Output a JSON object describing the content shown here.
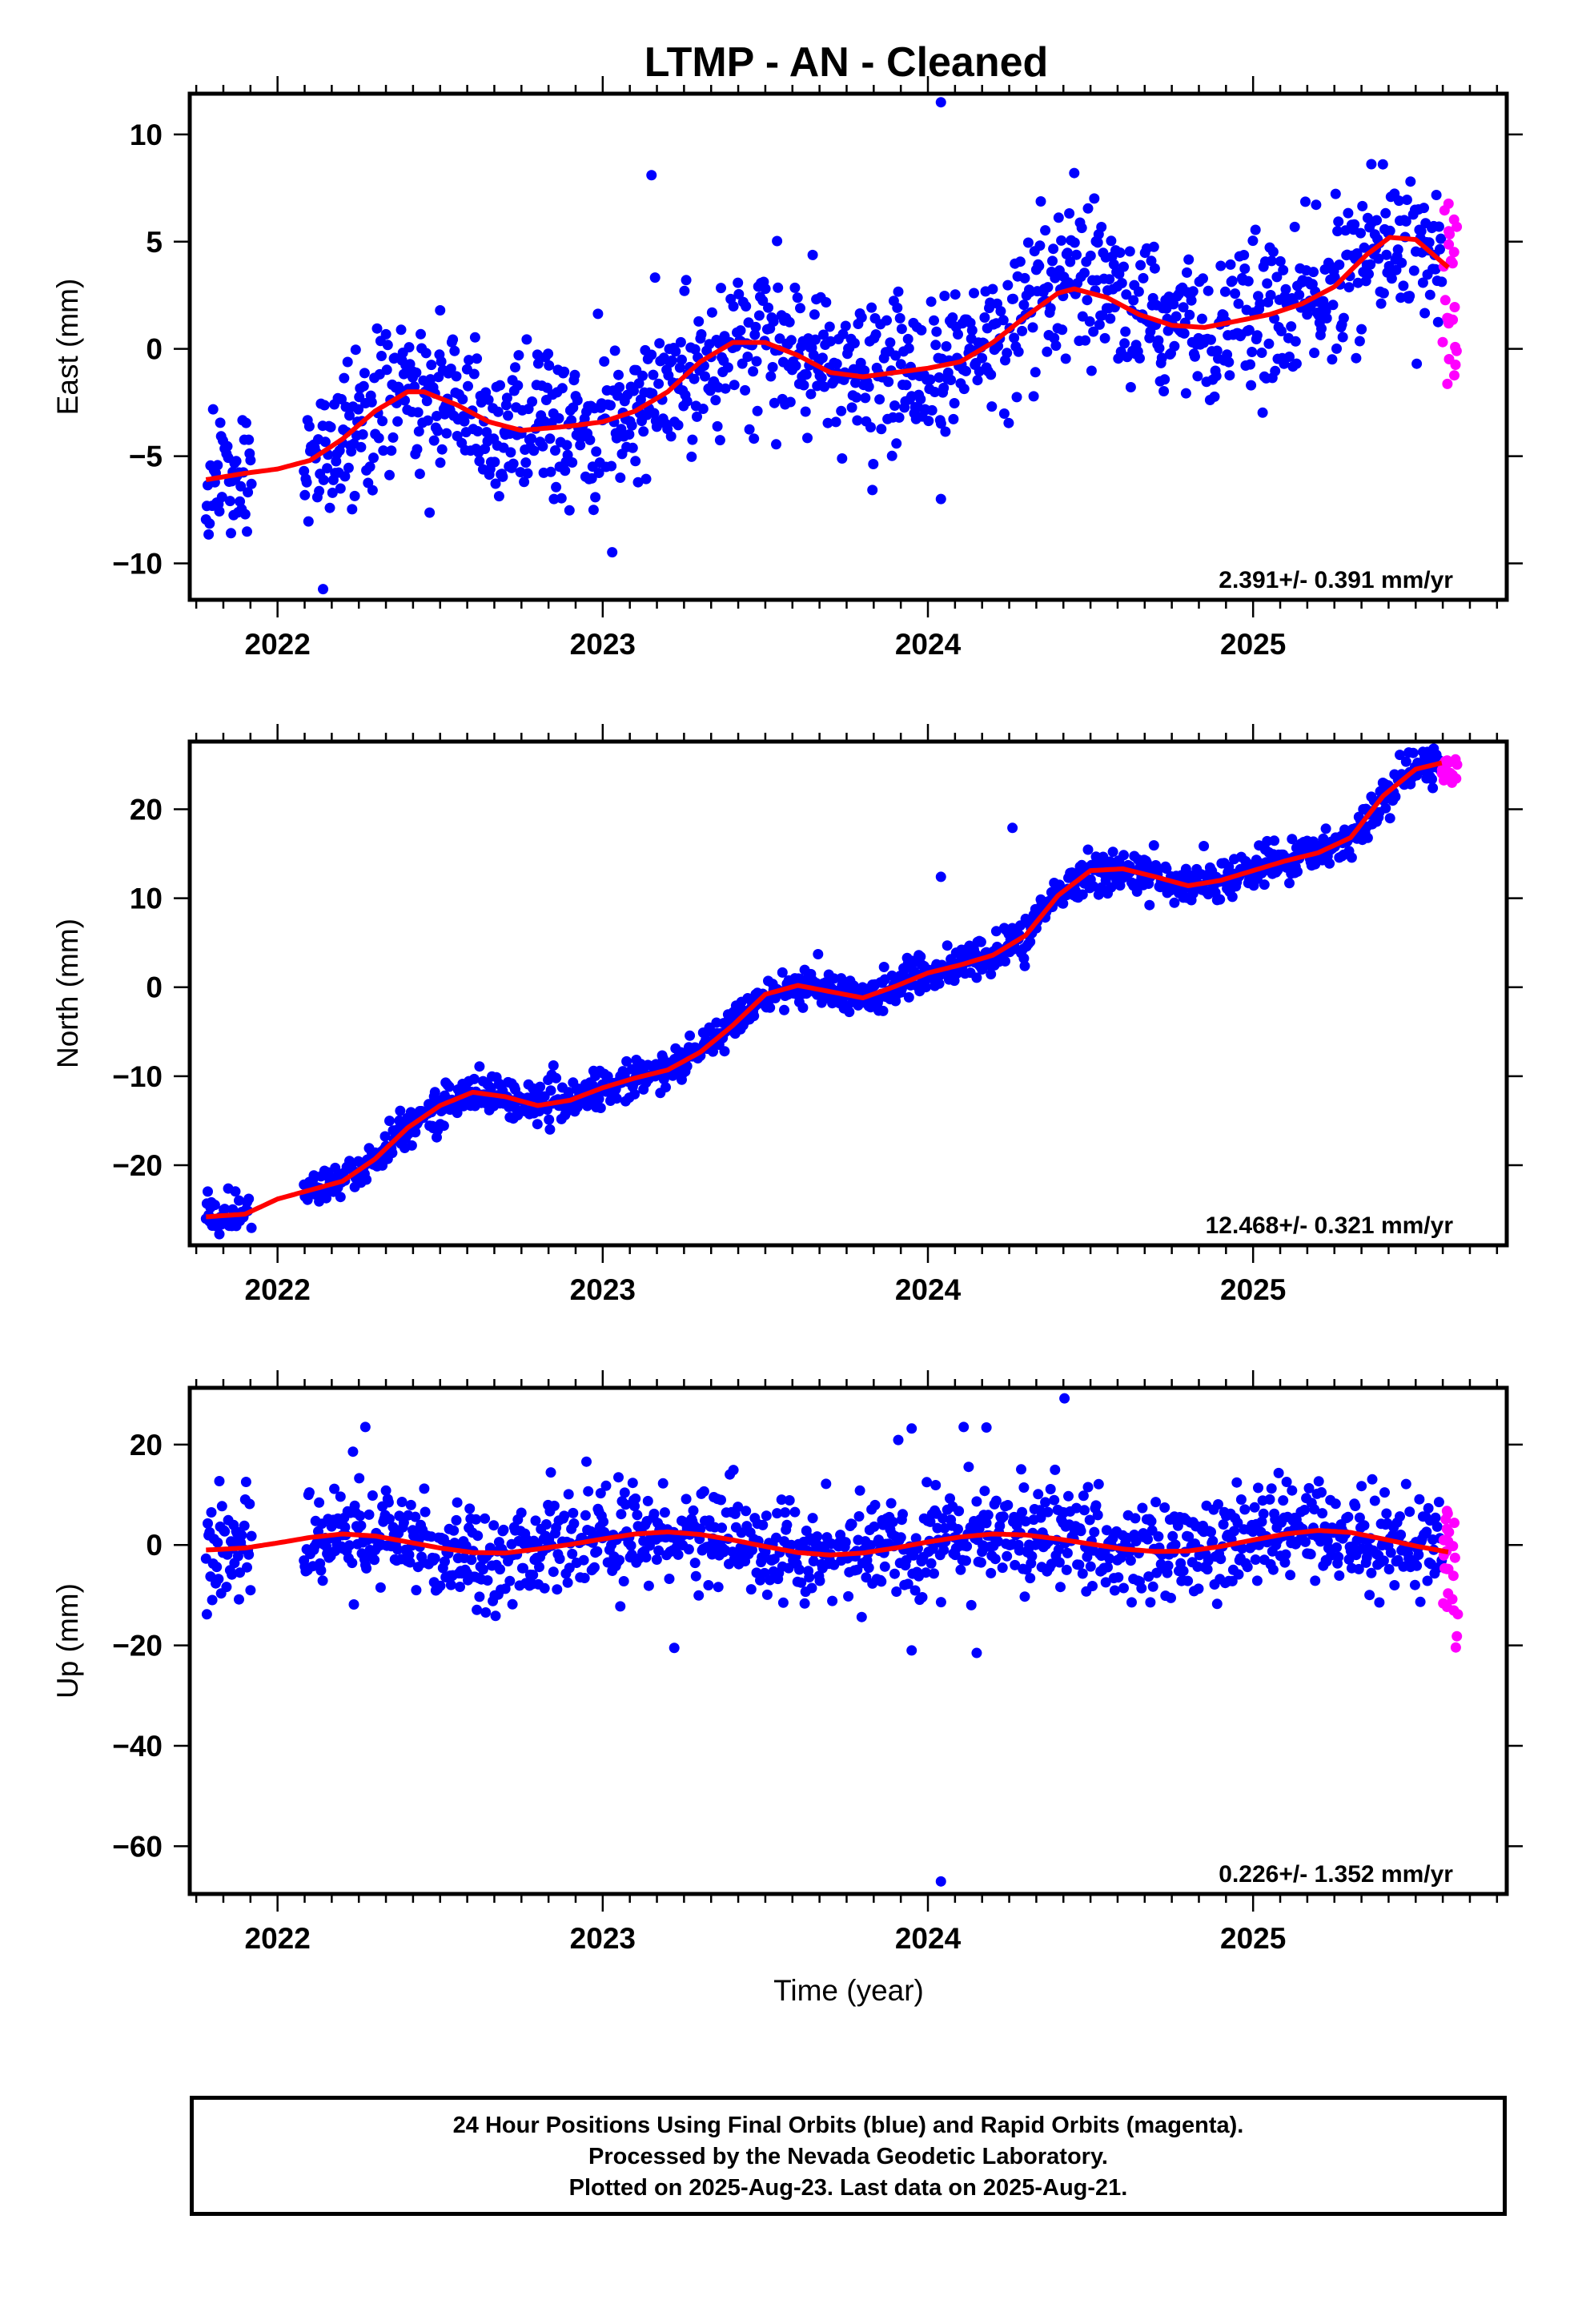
{
  "title": "LTMP  - AN - Cleaned",
  "xlabel": "Time (year)",
  "colors": {
    "final": "#0000ff",
    "rapid": "#ff00ff",
    "model": "#ff0000",
    "axis": "#000000"
  },
  "caption": [
    "24 Hour Positions Using Final Orbits (blue) and Rapid Orbits (magenta).",
    "Processed by the Nevada Geodetic Laboratory.",
    "Plotted on 2025-Aug-23. Last data on 2025-Aug-21."
  ],
  "chart_data": [
    {
      "type": "scatter",
      "ylabel": "East (mm)",
      "rate_label": "2.391+/- 0.391 mm/yr",
      "xlim": [
        2021.73,
        2025.78
      ],
      "ylim": [
        -11.7,
        11.9
      ],
      "xticks": [
        2022,
        2023,
        2024,
        2025
      ],
      "yticks": [
        -10,
        -5,
        0,
        5,
        10
      ],
      "model_curve": {
        "x": [
          2021.78,
          2021.9,
          2022.0,
          2022.1,
          2022.2,
          2022.3,
          2022.4,
          2022.45,
          2022.55,
          2022.65,
          2022.75,
          2022.9,
          2023.0,
          2023.1,
          2023.2,
          2023.3,
          2023.4,
          2023.5,
          2023.6,
          2023.7,
          2023.8,
          2023.9,
          2024.0,
          2024.1,
          2024.2,
          2024.3,
          2024.4,
          2024.45,
          2024.55,
          2024.65,
          2024.75,
          2024.85,
          2024.95,
          2025.05,
          2025.15,
          2025.25,
          2025.35,
          2025.42,
          2025.5,
          2025.6
        ],
        "y": [
          -6.1,
          -5.8,
          -5.6,
          -5.2,
          -4.2,
          -2.9,
          -2.0,
          -2.0,
          -2.6,
          -3.4,
          -3.8,
          -3.6,
          -3.4,
          -2.9,
          -2.0,
          -0.6,
          0.3,
          0.3,
          -0.3,
          -1.1,
          -1.3,
          -1.1,
          -0.9,
          -0.6,
          0.3,
          1.5,
          2.6,
          2.8,
          2.4,
          1.6,
          1.1,
          1.0,
          1.3,
          1.6,
          2.1,
          2.9,
          4.4,
          5.2,
          5.1,
          3.8
        ]
      },
      "final_points": {
        "start": 2021.78,
        "end": 2025.58,
        "gaps": [
          [
            2021.92,
            2022.08
          ]
        ],
        "scatter": 1.7
      },
      "rapid_points": {
        "start": 2025.58,
        "end": 2025.63,
        "y_range": [
          -1.8,
          7.3
        ]
      },
      "outliers": [
        [
          2023.15,
          8.1
        ],
        [
          2024.04,
          11.5
        ],
        [
          2024.04,
          -7.0
        ],
        [
          2022.14,
          -11.2
        ],
        [
          2022.85,
          -7.0
        ],
        [
          2024.45,
          8.2
        ],
        [
          2022.5,
          1.8
        ]
      ]
    },
    {
      "type": "scatter",
      "ylabel": "North (mm)",
      "rate_label": "12.468+/- 0.321 mm/yr",
      "xlim": [
        2021.73,
        2025.78
      ],
      "ylim": [
        -29,
        27.6
      ],
      "xticks": [
        2022,
        2023,
        2024,
        2025
      ],
      "yticks": [
        -20,
        -10,
        0,
        10,
        20
      ],
      "model_curve": {
        "x": [
          2021.78,
          2021.9,
          2022.0,
          2022.1,
          2022.2,
          2022.3,
          2022.4,
          2022.5,
          2022.6,
          2022.7,
          2022.8,
          2022.9,
          2023.0,
          2023.1,
          2023.2,
          2023.3,
          2023.4,
          2023.5,
          2023.6,
          2023.7,
          2023.8,
          2023.9,
          2024.0,
          2024.1,
          2024.2,
          2024.3,
          2024.4,
          2024.5,
          2024.6,
          2024.7,
          2024.8,
          2024.9,
          2025.0,
          2025.1,
          2025.2,
          2025.3,
          2025.4,
          2025.5,
          2025.58
        ],
        "y": [
          -25.8,
          -25.5,
          -23.8,
          -22.8,
          -21.8,
          -19.3,
          -15.8,
          -13.3,
          -11.8,
          -12.3,
          -13.3,
          -12.7,
          -11.3,
          -10.2,
          -9.3,
          -7.3,
          -4.3,
          -0.8,
          0.2,
          -0.5,
          -1.2,
          0.1,
          1.6,
          2.5,
          3.6,
          5.8,
          10.3,
          13.1,
          13.3,
          12.4,
          11.4,
          12.0,
          13.1,
          14.2,
          15.1,
          16.8,
          21.5,
          24.5,
          25.2
        ]
      },
      "final_points": {
        "start": 2021.78,
        "end": 2025.58,
        "gaps": [
          [
            2021.92,
            2022.08
          ]
        ],
        "scatter": 1.1
      },
      "rapid_points": {
        "start": 2025.58,
        "end": 2025.63,
        "y_range": [
          22.8,
          25.8
        ]
      },
      "outliers": [
        [
          2024.04,
          12.4
        ],
        [
          2024.26,
          17.9
        ]
      ]
    },
    {
      "type": "scatter",
      "ylabel": "Up (mm)",
      "rate_label": "0.226+/- 1.352 mm/yr",
      "xlim": [
        2021.73,
        2025.78
      ],
      "ylim": [
        -69.5,
        31.3
      ],
      "xticks": [
        2022,
        2023,
        2024,
        2025
      ],
      "yticks": [
        -60,
        -40,
        -20,
        0,
        20
      ],
      "model_curve": {
        "x": [
          2021.78,
          2021.9,
          2022.0,
          2022.1,
          2022.2,
          2022.3,
          2022.4,
          2022.5,
          2022.6,
          2022.7,
          2022.8,
          2022.9,
          2023.0,
          2023.1,
          2023.2,
          2023.3,
          2023.4,
          2023.5,
          2023.6,
          2023.7,
          2023.8,
          2023.9,
          2024.0,
          2024.1,
          2024.2,
          2024.3,
          2024.4,
          2024.5,
          2024.6,
          2024.7,
          2024.8,
          2024.9,
          2025.0,
          2025.1,
          2025.2,
          2025.3,
          2025.4,
          2025.5,
          2025.6
        ],
        "y": [
          -1.0,
          -0.6,
          0.4,
          1.5,
          2.2,
          1.8,
          0.6,
          -0.6,
          -1.5,
          -1.6,
          -0.8,
          0.1,
          1.2,
          2.2,
          2.6,
          2.1,
          1.0,
          -0.3,
          -1.5,
          -2.0,
          -1.6,
          -0.6,
          0.6,
          1.6,
          2.2,
          2.0,
          1.2,
          0.2,
          -0.8,
          -1.3,
          -1.2,
          -0.3,
          1.0,
          2.2,
          2.9,
          2.5,
          1.2,
          -0.2,
          -1.4
        ]
      },
      "final_points": {
        "start": 2021.78,
        "end": 2025.58,
        "gaps": [
          [
            2021.92,
            2022.08
          ]
        ],
        "scatter": 5.0
      },
      "rapid_points": {
        "start": 2025.58,
        "end": 2025.63,
        "y_range": [
          -22.6,
          8.1
        ]
      },
      "outliers": [
        [
          2024.04,
          -67.0
        ],
        [
          2024.42,
          29.2
        ],
        [
          2023.22,
          -20.5
        ],
        [
          2023.95,
          -21.0
        ],
        [
          2024.15,
          -21.5
        ],
        [
          2023.95,
          23.2
        ],
        [
          2024.11,
          23.5
        ],
        [
          2024.18,
          23.4
        ],
        [
          2022.27,
          23.5
        ]
      ]
    }
  ]
}
